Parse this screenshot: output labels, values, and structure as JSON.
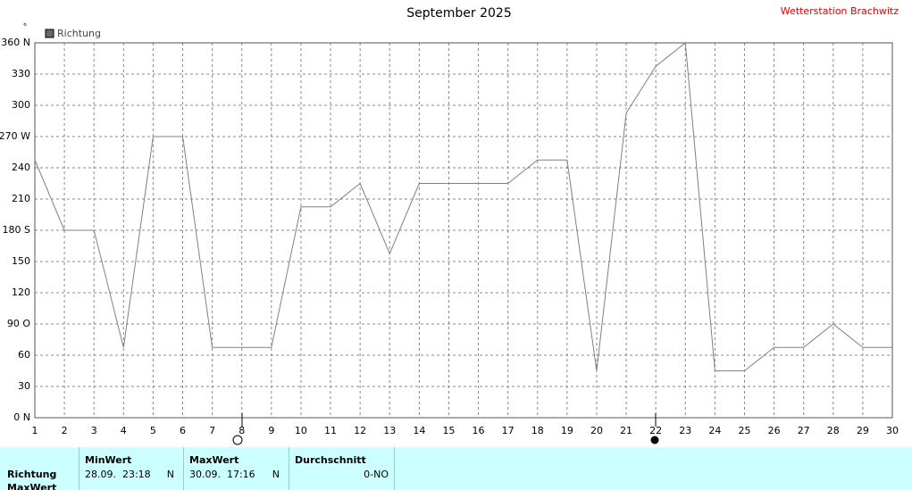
{
  "chart_data": {
    "type": "line",
    "title": "September 2025",
    "station": "Wetterstation Brachwitz",
    "y_unit": "°",
    "x": [
      1,
      2,
      3,
      4,
      5,
      6,
      7,
      8,
      9,
      10,
      11,
      12,
      13,
      14,
      15,
      16,
      17,
      18,
      19,
      20,
      21,
      22,
      23,
      24,
      25,
      26,
      27,
      28,
      29,
      30
    ],
    "series": [
      {
        "name": "Richtung",
        "color": "#808080",
        "legend_color": "#666666",
        "values": [
          247.5,
          180,
          180,
          67.5,
          270,
          270,
          67.5,
          67.5,
          67.5,
          202.5,
          202.5,
          225,
          157.5,
          225,
          225,
          225,
          225,
          247.5,
          247.5,
          45,
          292.5,
          337.5,
          360,
          45,
          45,
          67.5,
          67.5,
          90,
          67.5,
          67.5
        ]
      }
    ],
    "xlim": [
      1,
      30
    ],
    "xticks": [
      1,
      2,
      3,
      4,
      5,
      6,
      7,
      8,
      9,
      10,
      11,
      12,
      13,
      14,
      15,
      16,
      17,
      18,
      19,
      20,
      21,
      22,
      23,
      24,
      25,
      26,
      27,
      28,
      29,
      30
    ],
    "ylim": [
      0,
      360
    ],
    "yticks": [
      {
        "value": 0,
        "label": "0 N"
      },
      30,
      60,
      {
        "value": 90,
        "label": "90 O"
      },
      120,
      150,
      {
        "value": 180,
        "label": "180 S"
      },
      210,
      240,
      {
        "value": 270,
        "label": "270 W"
      },
      300,
      330,
      {
        "value": 360,
        "label": "360 N"
      }
    ],
    "grid": true
  },
  "table": {
    "row_label": "Richtung",
    "next_row_label": "MaxWert",
    "columns": [
      {
        "header": "MinWert",
        "time": "28.09.  23:18",
        "dir": "N"
      },
      {
        "header": "MaxWert",
        "time": "30.09.  17:16",
        "dir": "N"
      },
      {
        "header": "Durchschnitt",
        "dir": "0-NO"
      }
    ]
  }
}
